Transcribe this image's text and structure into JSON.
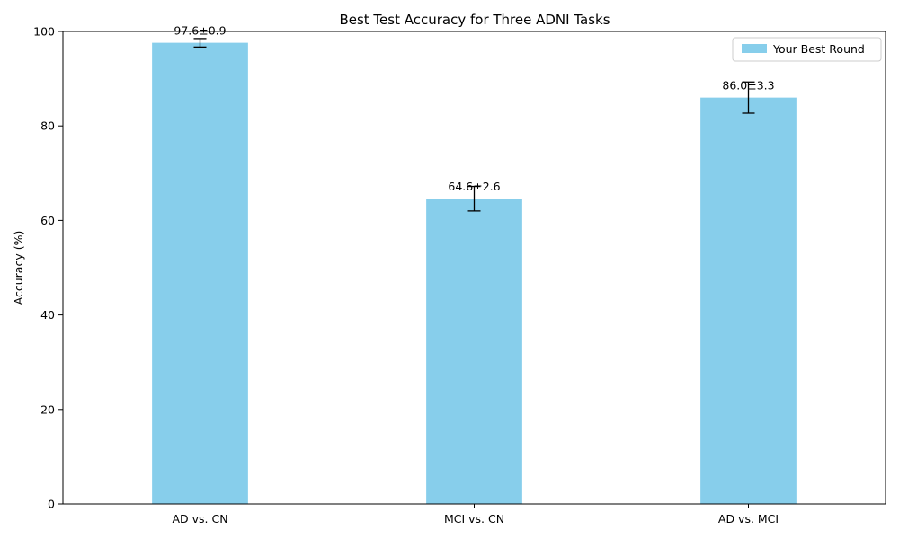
{
  "chart_data": {
    "type": "bar",
    "title": "Best Test Accuracy for Three ADNI Tasks",
    "xlabel": "",
    "ylabel": "Accuracy (%)",
    "ylim": [
      0,
      100
    ],
    "yticks": [
      0,
      20,
      40,
      60,
      80,
      100
    ],
    "categories": [
      "AD vs. CN",
      "MCI vs. CN",
      "AD vs. MCI"
    ],
    "series": [
      {
        "name": "Your Best Round",
        "values": [
          97.6,
          64.6,
          86.0
        ],
        "errors": [
          0.9,
          2.6,
          3.3
        ],
        "data_labels": [
          "97.6±0.9",
          "64.6±2.6",
          "86.0±3.3"
        ],
        "color": "#87ceeb"
      }
    ],
    "grid": false,
    "legend_position": "upper-right"
  }
}
